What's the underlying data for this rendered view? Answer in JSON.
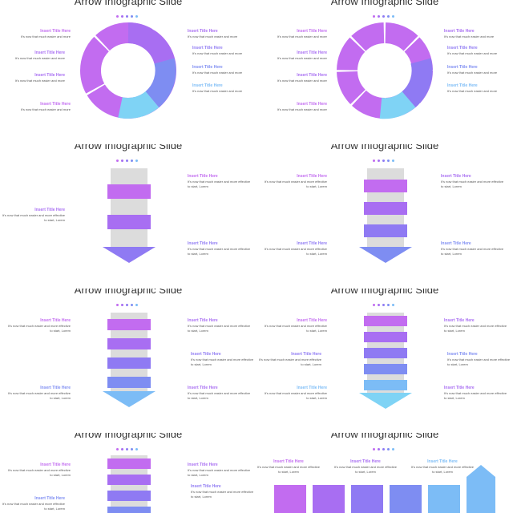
{
  "colors": {
    "magenta": "#c26cf0",
    "purple": "#a86ef2",
    "violet": "#8f7af3",
    "periwinkle": "#7e8df2",
    "sky": "#7cbcf6",
    "cyan": "#7fd3f5",
    "gray": "#dcdcdc",
    "text": "#333333"
  },
  "slides": [
    {
      "title": "Arrow Infographic Slide",
      "captions": [
        {
          "title": "Insert Title Here",
          "desc": "It's now that much easier and more",
          "color": "#c26cf0"
        },
        {
          "title": "Insert Title Here",
          "desc": "It's now that much easier and more",
          "color": "#a86ef2"
        },
        {
          "title": "Insert Title Here",
          "desc": "It's now that much easier and more",
          "color": "#a86ef2"
        },
        {
          "title": "Insert Title Here",
          "desc": "It's now that much easier and more",
          "color": "#c26cf0"
        },
        {
          "title": "Insert Title Here",
          "desc": "It's now that much easier and more",
          "color": "#a86ef2"
        },
        {
          "title": "Insert Title Here",
          "desc": "It's now that much easier and more",
          "color": "#8f7af3"
        },
        {
          "title": "Insert Title Here",
          "desc": "It's now that much easier and more",
          "color": "#7e8df2"
        },
        {
          "title": "Insert Title Here",
          "desc": "It's now that much easier and more",
          "color": "#7cbcf6"
        }
      ]
    },
    {
      "title": "Arrow Infographic Slide",
      "captions": [
        {
          "title": "Insert Title Here",
          "desc": "It's now that much easier and more",
          "color": "#c26cf0"
        },
        {
          "title": "Insert Title Here",
          "desc": "It's now that much easier and more",
          "color": "#a86ef2"
        },
        {
          "title": "Insert Title Here",
          "desc": "It's now that much easier and more",
          "color": "#a86ef2"
        },
        {
          "title": "Insert Title Here",
          "desc": "It's now that much easier and more",
          "color": "#c26cf0"
        },
        {
          "title": "Insert Title Here",
          "desc": "It's now that much easier and more",
          "color": "#a86ef2"
        },
        {
          "title": "Insert Title Here",
          "desc": "It's now that much easier and more",
          "color": "#8f7af3"
        },
        {
          "title": "Insert Title Here",
          "desc": "It's now that much easier and more",
          "color": "#7e8df2"
        },
        {
          "title": "Insert Title Here",
          "desc": "It's now that much easier and more",
          "color": "#7cbcf6"
        }
      ]
    },
    {
      "title": "Arrow Infographic Slide",
      "captions": [
        {
          "title": "Insert Title Here",
          "desc": "It's now that much easier and more effective to start, Lorem",
          "color": "#c26cf0"
        },
        {
          "title": "Insert Title Here",
          "desc": "It's now that much easier and more effective to start, Lorem",
          "color": "#a86ef2"
        },
        {
          "title": "Insert Title Here",
          "desc": "It's now that much easier and more effective to start, Lorem",
          "color": "#8f7af3"
        }
      ]
    },
    {
      "title": "Arrow Infographic Slide",
      "captions": [
        {
          "title": "Insert Title Here",
          "desc": "It's now that much easier and more effective to start, Lorem",
          "color": "#c26cf0"
        },
        {
          "title": "Insert Title Here",
          "desc": "It's now that much easier and more effective to start, Lorem",
          "color": "#a86ef2"
        },
        {
          "title": "Insert Title Here",
          "desc": "It's now that much easier and more effective to start, Lorem",
          "color": "#8f7af3"
        },
        {
          "title": "Insert Title Here",
          "desc": "It's now that much easier and more effective to start, Lorem",
          "color": "#7e8df2"
        }
      ]
    },
    {
      "title": "Arrow Infographic Slide",
      "captions": [
        {
          "title": "Insert Title Here",
          "desc": "It's now that much easier and more effective to start, Lorem",
          "color": "#c26cf0"
        },
        {
          "title": "Insert Title Here",
          "desc": "It's now that much easier and more effective to start, Lorem",
          "color": "#a86ef2"
        },
        {
          "title": "Insert Title Here",
          "desc": "It's now that much easier and more effective to start, Lorem",
          "color": "#8f7af3"
        },
        {
          "title": "Insert Title Here",
          "desc": "It's now that much easier and more effective to start, Lorem",
          "color": "#7e8df2"
        },
        {
          "title": "Insert Title Here",
          "desc": "It's now that much easier and more effective to start, Lorem",
          "color": "#a86ef2"
        }
      ]
    },
    {
      "title": "Arrow Infographic Slide",
      "captions": [
        {
          "title": "Insert Title Here",
          "desc": "It's now that much easier and more effective to start, Lorem",
          "color": "#c26cf0"
        },
        {
          "title": "Insert Title Here",
          "desc": "It's now that much easier and more effective to start, Lorem",
          "color": "#a86ef2"
        },
        {
          "title": "Insert Title Here",
          "desc": "It's now that much easier and more effective to start, Lorem",
          "color": "#8f7af3"
        },
        {
          "title": "Insert Title Here",
          "desc": "It's now that much easier and more effective to start, Lorem",
          "color": "#7e8df2"
        },
        {
          "title": "Insert Title Here",
          "desc": "It's now that much easier and more effective to start, Lorem",
          "color": "#7cbcf6"
        },
        {
          "title": "Insert Title Here",
          "desc": "It's now that much easier and more effective to start, Lorem",
          "color": "#a86ef2"
        }
      ]
    },
    {
      "title": "Arrow Infographic Slide",
      "captions": [
        {
          "title": "Insert Title Here",
          "desc": "It's now that much easier and more effective to start, Lorem",
          "color": "#c26cf0"
        },
        {
          "title": "Insert Title Here",
          "desc": "It's now that much easier and more effective to start, Lorem",
          "color": "#a86ef2"
        },
        {
          "title": "Insert Title Here",
          "desc": "It's now that much easier and more effective to start, Lorem",
          "color": "#8f7af3"
        },
        {
          "title": "Insert Title Here",
          "desc": "It's now that much easier and more effective to start, Lorem",
          "color": "#7e8df2"
        }
      ]
    },
    {
      "title": "Arrow Infographic Slide",
      "captions": [
        {
          "title": "Insert Title Here",
          "desc": "It's now that much easier and more effective to start, Lorem",
          "color": "#c26cf0"
        },
        {
          "title": "Insert Title Here",
          "desc": "It's now that much easier and more effective to start, Lorem",
          "color": "#a86ef2"
        },
        {
          "title": "Insert Title Here",
          "desc": "It's now that much easier and more effective to start, Lorem",
          "color": "#7cbcf6"
        }
      ]
    }
  ]
}
